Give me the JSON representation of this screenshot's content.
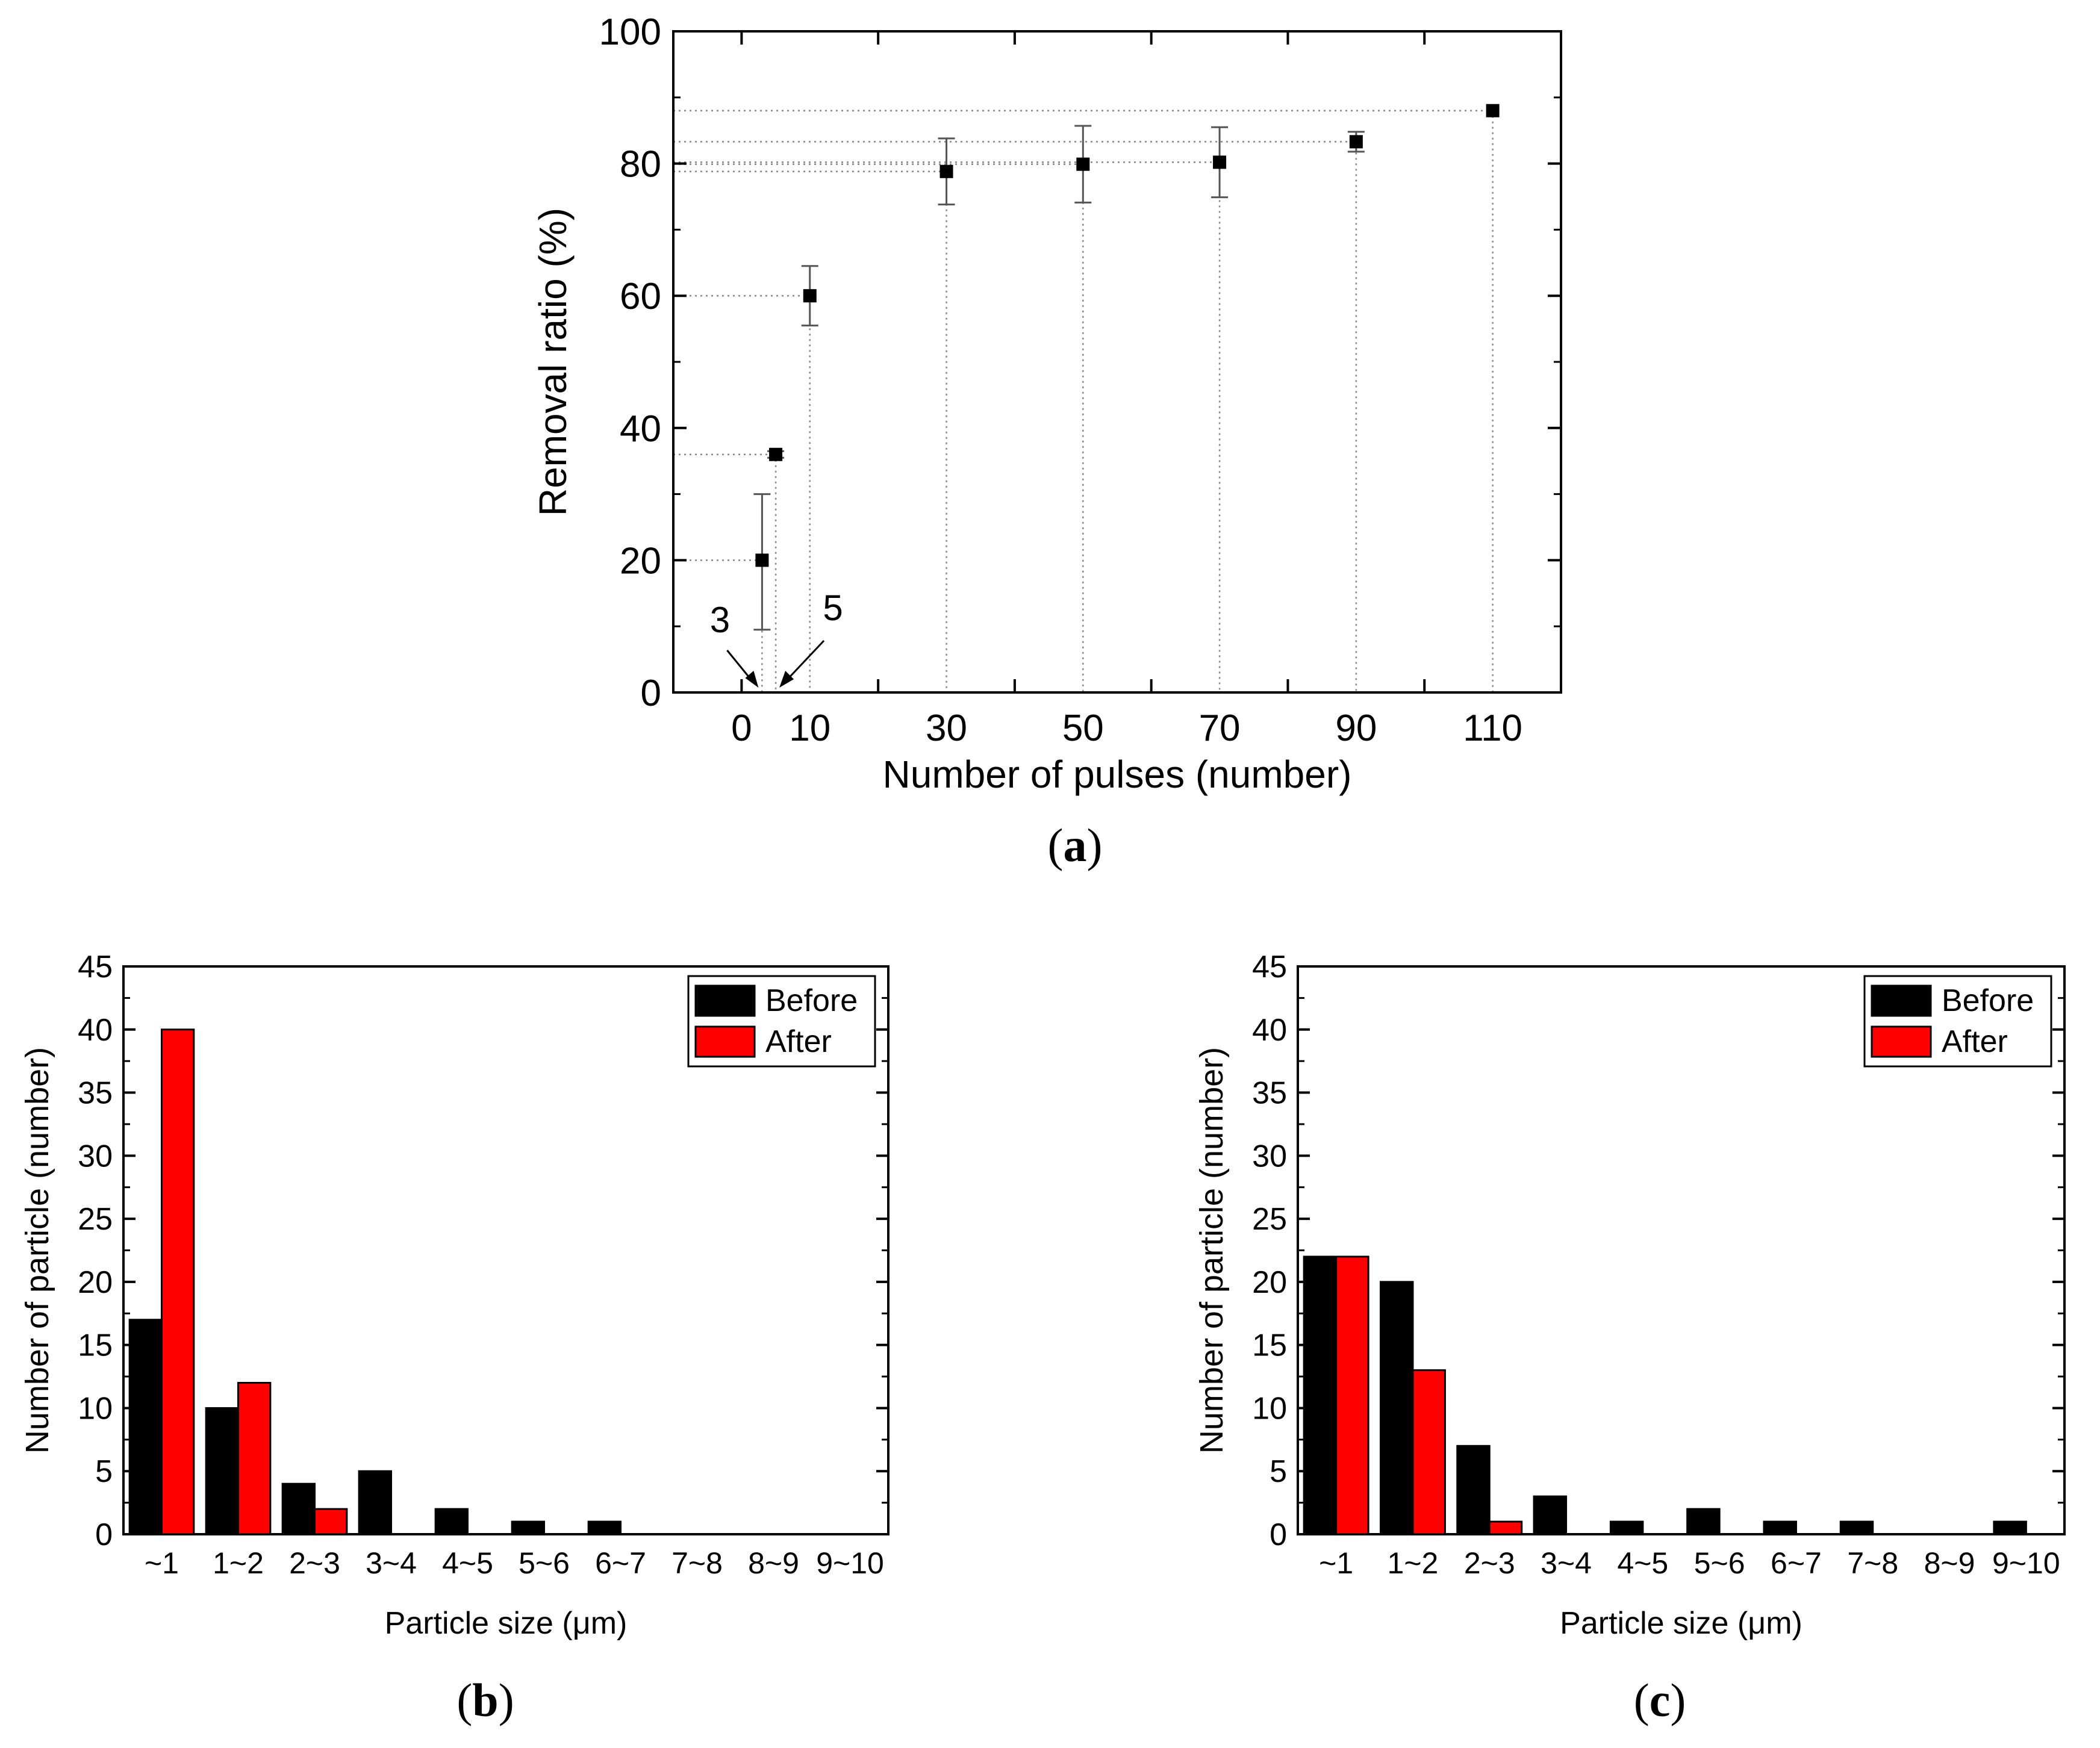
{
  "chart_data": [
    {
      "id": "a",
      "type": "scatter",
      "panel_label": "a",
      "xlabel": "Number of pulses (number)",
      "ylabel": "Removal ratio (%)",
      "xlim": [
        -10,
        120
      ],
      "ylim": [
        0,
        100
      ],
      "xticks": [
        0,
        10,
        30,
        50,
        70,
        90,
        110
      ],
      "xtick_labels": [
        "0",
        "10",
        "30",
        "50",
        "70",
        "90",
        "110"
      ],
      "yticks": [
        0,
        20,
        40,
        60,
        80,
        100
      ],
      "ytick_labels": [
        "0",
        "20",
        "40",
        "60",
        "80",
        "100"
      ],
      "grid": false,
      "points": [
        {
          "x": 3,
          "y": 20,
          "err_low": 10.5,
          "err_high": 10
        },
        {
          "x": 5,
          "y": 36,
          "err_low": 0.5,
          "err_high": 0.5
        },
        {
          "x": 10,
          "y": 60,
          "err_low": 4.5,
          "err_high": 4.5
        },
        {
          "x": 30,
          "y": 78.8,
          "err_low": 5,
          "err_high": 5
        },
        {
          "x": 50,
          "y": 79.9,
          "err_low": 5.8,
          "err_high": 5.8
        },
        {
          "x": 70,
          "y": 80.2,
          "err_low": 5.3,
          "err_high": 5.3
        },
        {
          "x": 90,
          "y": 83.3,
          "err_low": 1.5,
          "err_high": 1.5
        },
        {
          "x": 110,
          "y": 88,
          "err_low": 0,
          "err_high": 0
        }
      ],
      "annotations": [
        {
          "text": "3",
          "target_x": 3
        },
        {
          "text": "5",
          "target_x": 5
        }
      ]
    },
    {
      "id": "b",
      "type": "bar",
      "panel_label": "b",
      "xlabel": "Particle size (μm)",
      "ylabel": "Number of particle (number)",
      "ylim": [
        0,
        45
      ],
      "yticks": [
        0,
        5,
        10,
        15,
        20,
        25,
        30,
        35,
        40,
        45
      ],
      "ytick_labels": [
        "0",
        "5",
        "10",
        "15",
        "20",
        "25",
        "30",
        "35",
        "40",
        "45"
      ],
      "categories": [
        "~1",
        "1~2",
        "2~3",
        "3~4",
        "4~5",
        "5~6",
        "6~7",
        "7~8",
        "8~9",
        "9~10"
      ],
      "series": [
        {
          "name": "Before",
          "color": "#000000",
          "values": [
            17,
            10,
            4,
            5,
            2,
            1,
            1,
            0,
            0,
            0
          ]
        },
        {
          "name": "After",
          "color": "#ff0000",
          "values": [
            40,
            12,
            2,
            0,
            0,
            0,
            0,
            0,
            0,
            0
          ]
        }
      ],
      "legend": "top-right",
      "grid": false
    },
    {
      "id": "c",
      "type": "bar",
      "panel_label": "c",
      "xlabel": "Particle size (μm)",
      "ylabel": "Number of particle (number)",
      "ylim": [
        0,
        45
      ],
      "yticks": [
        0,
        5,
        10,
        15,
        20,
        25,
        30,
        35,
        40,
        45
      ],
      "ytick_labels": [
        "0",
        "5",
        "10",
        "15",
        "20",
        "25",
        "30",
        "35",
        "40",
        "45"
      ],
      "categories": [
        "~1",
        "1~2",
        "2~3",
        "3~4",
        "4~5",
        "5~6",
        "6~7",
        "7~8",
        "8~9",
        "9~10"
      ],
      "series": [
        {
          "name": "Before",
          "color": "#000000",
          "values": [
            22,
            20,
            7,
            3,
            1,
            2,
            1,
            1,
            0,
            1
          ]
        },
        {
          "name": "After",
          "color": "#ff0000",
          "values": [
            22,
            13,
            1,
            0,
            0,
            0,
            0,
            0,
            0,
            0
          ]
        }
      ],
      "legend": "top-right",
      "grid": false
    }
  ]
}
